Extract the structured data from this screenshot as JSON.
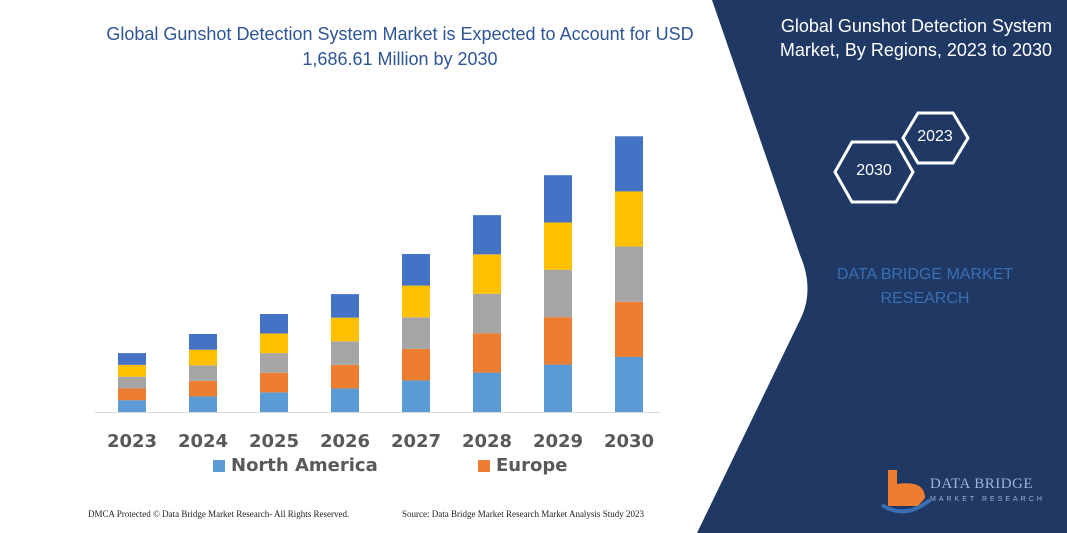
{
  "header": {
    "title": "Global Gunshot Detection System Market is Expected to Account for USD 1,686.61 Million by 2030"
  },
  "side_panel": {
    "title": "Global Gunshot Detection System Market, By Regions, 2023 to 2030",
    "hex_start": "2023",
    "hex_end": "2030",
    "brand_text": "DATA BRIDGE MARKET RESEARCH",
    "logo_text": "DATA BRIDGE",
    "logo_subtext": "MARKET RESEARCH",
    "background_color": "#1f3864"
  },
  "footer": {
    "left": "DMCA Protected © Data Bridge Market Research-  All Rights Reserved.",
    "right": "Source:  Data Bridge Market Research  Market Analysis Study 2023"
  },
  "chart_data": {
    "type": "bar",
    "stacked": true,
    "title": "Global Gunshot Detection System Market is Expected to Account for USD 1,686.61 Million by 2030",
    "categories": [
      "2023",
      "2024",
      "2025",
      "2026",
      "2027",
      "2028",
      "2029",
      "2030"
    ],
    "unit": "USD Million",
    "ylim": [
      0,
      1700
    ],
    "grid": false,
    "legend_position": "bottom",
    "series": [
      {
        "name": "North America",
        "color": "#5b9bd5",
        "values": [
          72,
          95,
          120,
          144,
          193,
          241,
          290,
          337
        ]
      },
      {
        "name": "Europe",
        "color": "#ed7d31",
        "values": [
          72,
          95,
          120,
          144,
          193,
          241,
          290,
          337
        ]
      },
      {
        "color": "#a5a5a5",
        "values": [
          72,
          95,
          120,
          144,
          193,
          241,
          290,
          338
        ]
      },
      {
        "color": "#ffc000",
        "values": [
          72,
          96,
          120,
          145,
          194,
          241,
          289,
          337
        ]
      },
      {
        "color": "#4472c4",
        "values": [
          72,
          96,
          119,
          144,
          193,
          240,
          289,
          337
        ]
      }
    ]
  }
}
